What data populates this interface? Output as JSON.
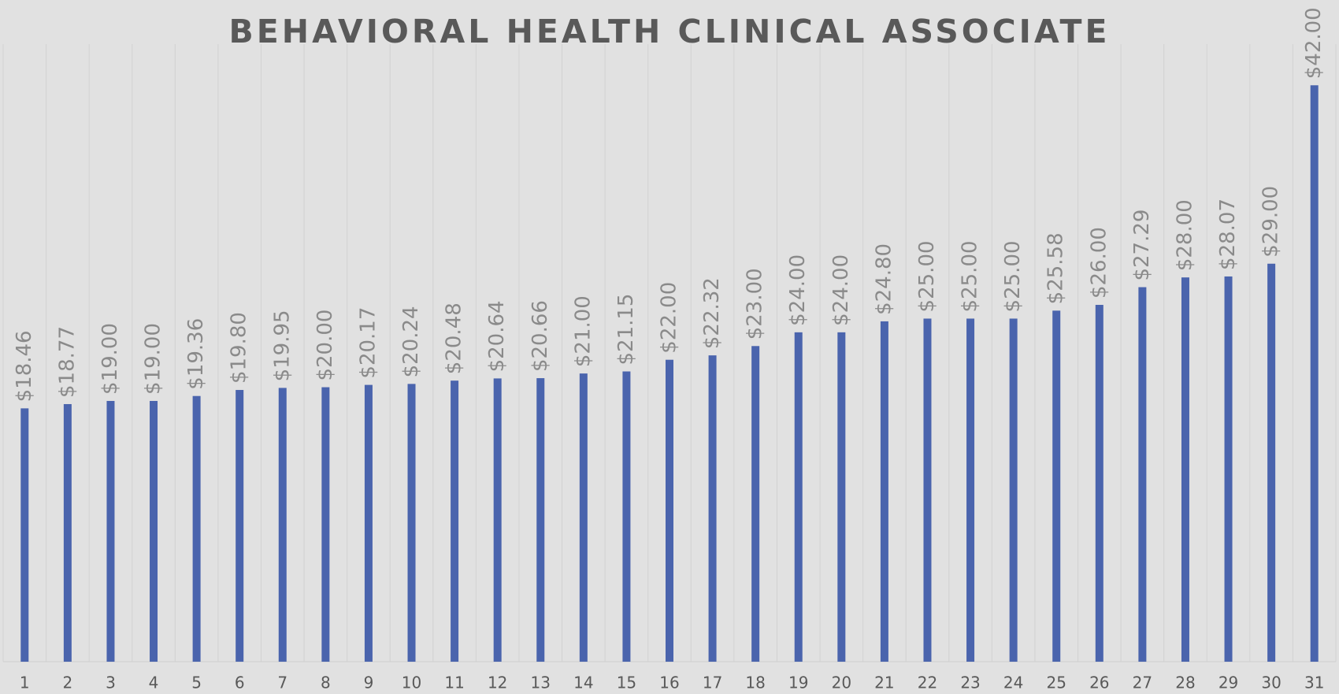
{
  "chart_data": {
    "type": "bar",
    "title": "BEHAVIORAL HEALTH CLINICAL ASSOCIATE",
    "categories": [
      "1",
      "2",
      "3",
      "4",
      "5",
      "6",
      "7",
      "8",
      "9",
      "10",
      "11",
      "12",
      "13",
      "14",
      "15",
      "16",
      "17",
      "18",
      "19",
      "20",
      "21",
      "22",
      "23",
      "24",
      "25",
      "26",
      "27",
      "28",
      "29",
      "30",
      "31"
    ],
    "values": [
      18.46,
      18.77,
      19,
      19,
      19.36,
      19.8,
      19.95,
      20,
      20.17,
      20.24,
      20.48,
      20.64,
      20.66,
      21,
      21.15,
      22,
      22.32,
      23,
      24,
      24,
      24.8,
      25,
      25,
      25,
      25.58,
      26,
      27.29,
      28,
      28.07,
      29,
      42
    ],
    "value_labels": [
      "$18.46",
      "$18.77",
      "$19.00",
      "$19.00",
      "$19.36",
      "$19.80",
      "$19.95",
      "$20.00",
      "$20.17",
      "$20.24",
      "$20.48",
      "$20.64",
      "$20.66",
      "$21.00",
      "$21.15",
      "$22.00",
      "$22.32",
      "$23.00",
      "$24.00",
      "$24.00",
      "$24.80",
      "$25.00",
      "$25.00",
      "$25.00",
      "$25.58",
      "$26.00",
      "$27.29",
      "$28.00",
      "$28.07",
      "$29.00",
      "$42.00"
    ],
    "color": "#4a64ad",
    "ylim": [
      0,
      45
    ],
    "grid": true
  }
}
